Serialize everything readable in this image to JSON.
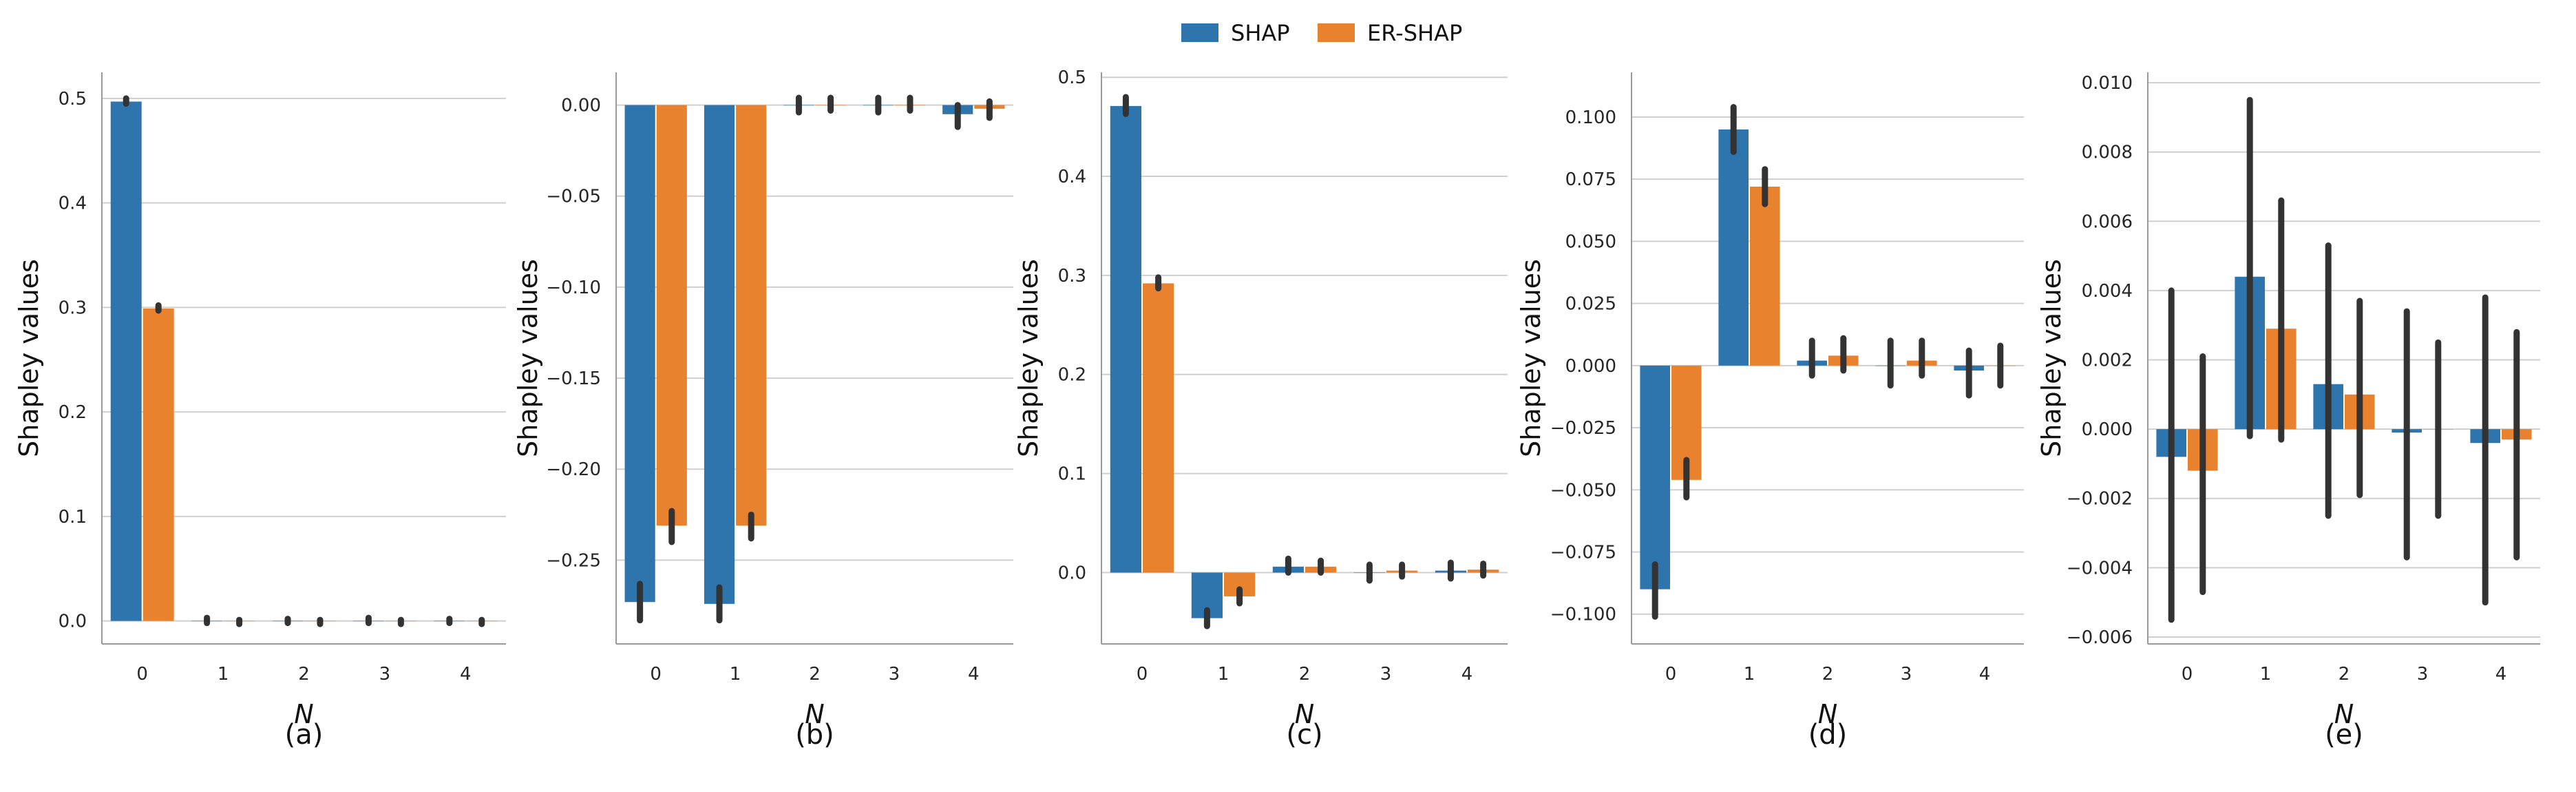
{
  "legend": {
    "entries": [
      {
        "name": "SHAP",
        "color": "#2E75AD"
      },
      {
        "name": "ER-SHAP",
        "color": "#E8822F"
      }
    ]
  },
  "colors": {
    "shap": "#2E75AD",
    "ershap": "#E8822F",
    "errorbar": "#333333",
    "grid": "#cfcfcf",
    "axis": "#9a9a9a"
  },
  "chart_data": [
    {
      "type": "bar",
      "caption": "(a)",
      "xlabel": "N",
      "ylabel": "Shapley values",
      "categories": [
        "0",
        "1",
        "2",
        "3",
        "4"
      ],
      "ylim": [
        -0.022,
        0.525
      ],
      "yticks": [
        0.0,
        0.1,
        0.2,
        0.3,
        0.4,
        0.5
      ],
      "ytick_labels": [
        "0.0",
        "0.1",
        "0.2",
        "0.3",
        "0.4",
        "0.5"
      ],
      "grid": true,
      "series": [
        {
          "name": "SHAP",
          "values": [
            0.497,
            0.0,
            0.0,
            0.0,
            0.0
          ],
          "err_low": [
            0.495,
            -0.002,
            -0.001,
            -0.002,
            -0.001
          ],
          "err_high": [
            0.5,
            0.003,
            0.002,
            0.003,
            0.002
          ]
        },
        {
          "name": "ER-SHAP",
          "values": [
            0.299,
            0.0,
            0.0,
            0.0,
            0.0
          ],
          "err_low": [
            0.297,
            -0.001,
            -0.001,
            -0.001,
            -0.001
          ],
          "err_high": [
            0.302,
            0.001,
            0.001,
            0.001,
            0.001
          ]
        }
      ]
    },
    {
      "type": "bar",
      "caption": "(b)",
      "xlabel": "N",
      "ylabel": "Shapley values",
      "categories": [
        "0",
        "1",
        "2",
        "3",
        "4"
      ],
      "ylim": [
        -0.296,
        0.018
      ],
      "yticks": [
        0.0,
        -0.05,
        -0.1,
        -0.15,
        -0.2,
        -0.25
      ],
      "ytick_labels": [
        "0.00",
        "−0.05",
        "−0.10",
        "−0.15",
        "−0.20",
        "−0.25"
      ],
      "grid": true,
      "series": [
        {
          "name": "SHAP",
          "values": [
            -0.273,
            -0.274,
            0.0,
            0.0,
            -0.005
          ],
          "err_low": [
            -0.283,
            -0.283,
            -0.004,
            -0.004,
            -0.012
          ],
          "err_high": [
            -0.263,
            -0.265,
            0.004,
            0.004,
            0.0
          ]
        },
        {
          "name": "ER-SHAP",
          "values": [
            -0.231,
            -0.231,
            0.0,
            0.0,
            -0.002
          ],
          "err_low": [
            -0.24,
            -0.238,
            -0.003,
            -0.003,
            -0.007
          ],
          "err_high": [
            -0.223,
            -0.225,
            0.004,
            0.004,
            0.002
          ]
        }
      ]
    },
    {
      "type": "bar",
      "caption": "(c)",
      "xlabel": "N",
      "ylabel": "Shapley values",
      "categories": [
        "0",
        "1",
        "2",
        "3",
        "4"
      ],
      "ylim": [
        -0.072,
        0.505
      ],
      "yticks": [
        0.0,
        0.1,
        0.2,
        0.3,
        0.4,
        0.5
      ],
      "ytick_labels": [
        "0.0",
        "0.1",
        "0.2",
        "0.3",
        "0.4",
        "0.5"
      ],
      "grid": true,
      "series": [
        {
          "name": "SHAP",
          "values": [
            0.471,
            -0.046,
            0.006,
            0.0,
            0.002
          ],
          "err_low": [
            0.463,
            -0.054,
            0.0,
            -0.008,
            -0.006
          ],
          "err_high": [
            0.48,
            -0.038,
            0.014,
            0.008,
            0.01
          ]
        },
        {
          "name": "ER-SHAP",
          "values": [
            0.292,
            -0.024,
            0.006,
            0.002,
            0.003
          ],
          "err_low": [
            0.287,
            -0.031,
            0.0,
            -0.004,
            -0.003
          ],
          "err_high": [
            0.298,
            -0.017,
            0.012,
            0.008,
            0.009
          ]
        }
      ]
    },
    {
      "type": "bar",
      "caption": "(d)",
      "xlabel": "N",
      "ylabel": "Shapley values",
      "categories": [
        "0",
        "1",
        "2",
        "3",
        "4"
      ],
      "ylim": [
        -0.112,
        0.118
      ],
      "yticks": [
        0.1,
        0.075,
        0.05,
        0.025,
        0.0,
        -0.025,
        -0.05,
        -0.075,
        -0.1
      ],
      "ytick_labels": [
        "0.100",
        "0.075",
        "0.050",
        "0.025",
        "0.000",
        "−0.025",
        "−0.050",
        "−0.075",
        "−0.100"
      ],
      "grid": true,
      "series": [
        {
          "name": "SHAP",
          "values": [
            -0.09,
            0.095,
            0.002,
            0.0,
            -0.002
          ],
          "err_low": [
            -0.101,
            0.086,
            -0.004,
            -0.008,
            -0.012
          ],
          "err_high": [
            -0.08,
            0.104,
            0.01,
            0.01,
            0.006
          ]
        },
        {
          "name": "ER-SHAP",
          "values": [
            -0.046,
            0.072,
            0.004,
            0.002,
            0.0
          ],
          "err_low": [
            -0.053,
            0.065,
            -0.002,
            -0.004,
            -0.008
          ],
          "err_high": [
            -0.038,
            0.079,
            0.011,
            0.01,
            0.008
          ]
        }
      ]
    },
    {
      "type": "bar",
      "caption": "(e)",
      "xlabel": "N",
      "ylabel": "Shapley values",
      "categories": [
        "0",
        "1",
        "2",
        "3",
        "4"
      ],
      "ylim": [
        -0.0062,
        0.0103
      ],
      "yticks": [
        0.01,
        0.008,
        0.006,
        0.004,
        0.002,
        0.0,
        -0.002,
        -0.004,
        -0.006
      ],
      "ytick_labels": [
        "0.010",
        "0.008",
        "0.006",
        "0.004",
        "0.002",
        "0.000",
        "−0.002",
        "−0.004",
        "−0.006"
      ],
      "grid": true,
      "series": [
        {
          "name": "SHAP",
          "values": [
            -0.0008,
            0.0044,
            0.0013,
            -0.0001,
            -0.0004
          ],
          "err_low": [
            -0.0055,
            -0.0002,
            -0.0025,
            -0.0037,
            -0.005
          ],
          "err_high": [
            0.004,
            0.0095,
            0.0053,
            0.0034,
            0.0038
          ]
        },
        {
          "name": "ER-SHAP",
          "values": [
            -0.0012,
            0.0029,
            0.001,
            0.0,
            -0.0003
          ],
          "err_low": [
            -0.0047,
            -0.0003,
            -0.0019,
            -0.0025,
            -0.0037
          ],
          "err_high": [
            0.0021,
            0.0066,
            0.0037,
            0.0025,
            0.0028
          ]
        }
      ]
    }
  ]
}
